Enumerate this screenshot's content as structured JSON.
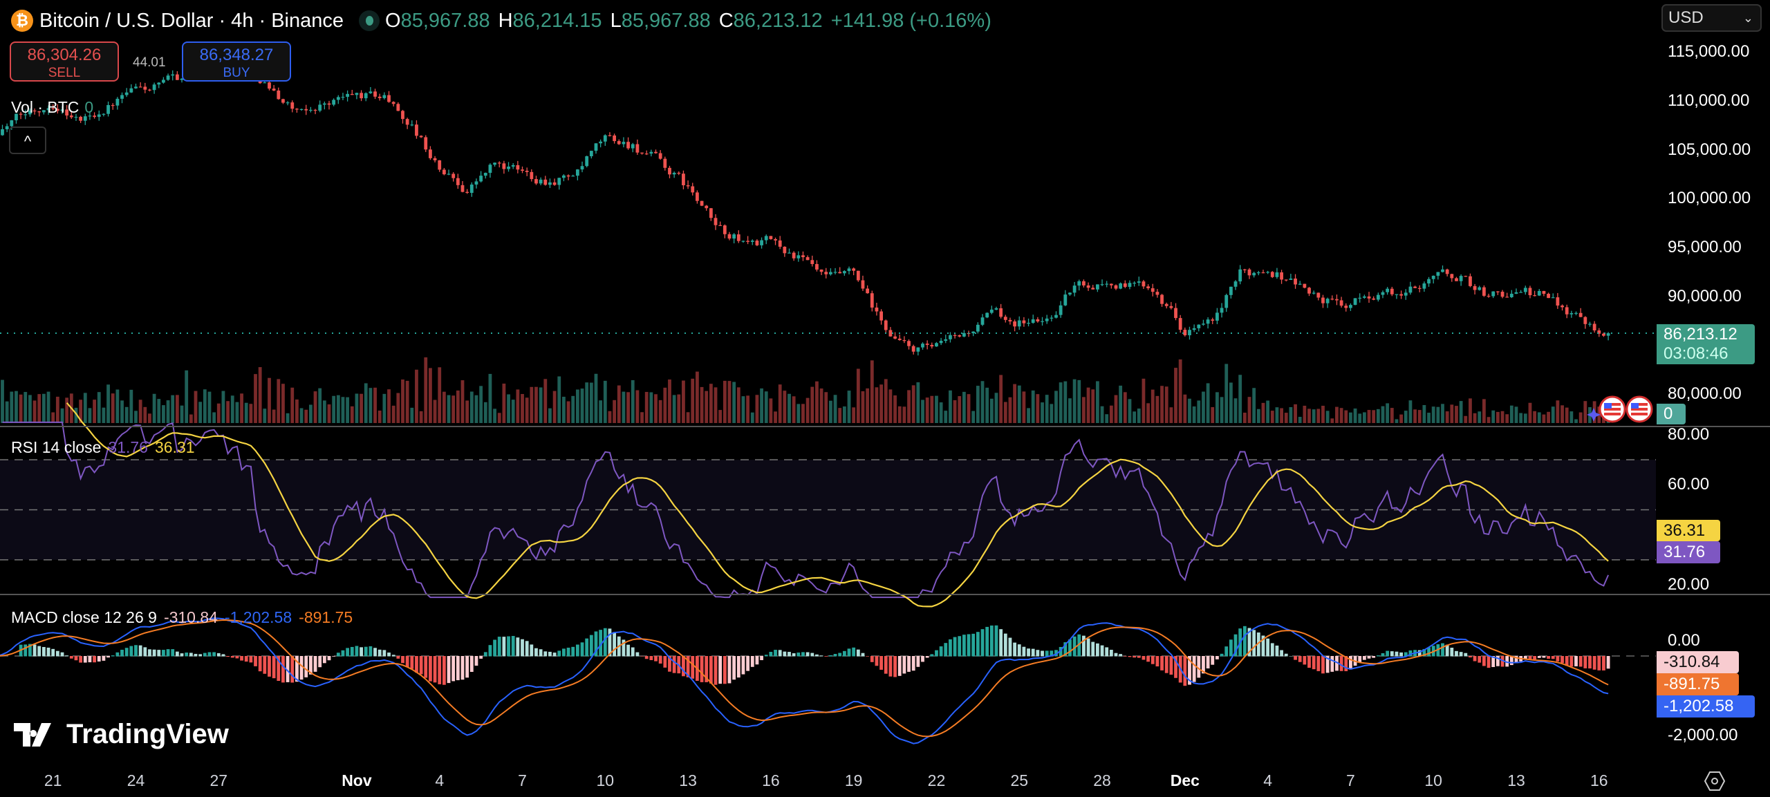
{
  "header": {
    "symbol_title": "Bitcoin / U.S. Dollar · 4h · Binance",
    "ohlc": {
      "o_label": "O",
      "o": "85,967.88",
      "h_label": "H",
      "h": "86,214.15",
      "l_label": "L",
      "l": "85,967.88",
      "c_label": "C",
      "c": "86,213.12",
      "change": "+141.98 (+0.16%)"
    }
  },
  "trade": {
    "sell_price": "86,304.26",
    "sell_label": "SELL",
    "spread": "44.01",
    "buy_price": "86,348.27",
    "buy_label": "BUY"
  },
  "volume_legend": {
    "label": "Vol · BTC",
    "value": "0"
  },
  "collapse_label": "^",
  "currency": {
    "selected": "USD"
  },
  "price_axis": {
    "ticks": [
      "115,000.00",
      "110,000.00",
      "105,000.00",
      "100,000.00",
      "95,000.00",
      "90,000.00",
      "80,000.00"
    ],
    "last_price": "86,213.12",
    "countdown": "03:08:46",
    "volume_tag": "0"
  },
  "rsi": {
    "label": "RSI 14 close",
    "rsi": "31.76",
    "ma": "36.31",
    "ticks": [
      "80.00",
      "60.00",
      "20.00"
    ]
  },
  "macd": {
    "label": "MACD close 12 26 9",
    "hist": "-310.84",
    "macd": "-1,202.58",
    "signal": "-891.75",
    "ticks": [
      "0.00",
      "-2,000.00"
    ]
  },
  "time_axis": [
    "21",
    "24",
    "27",
    "Nov",
    "4",
    "7",
    "10",
    "13",
    "16",
    "19",
    "22",
    "25",
    "28",
    "Dec",
    "4",
    "7",
    "10",
    "13",
    "16"
  ],
  "logo": "TradingView",
  "colors": {
    "up": "#26a69a",
    "down": "#ef5350",
    "rsi": "#7e57c2",
    "rsi_ma": "#f5d442",
    "macd": "#2962ff",
    "signal": "#f57c24"
  },
  "chart_data": {
    "type": "candlestick",
    "title": "Bitcoin / U.S. Dollar · 4h · Binance",
    "interval": "4h",
    "ylim": [
      77000,
      118000
    ],
    "price_waypoints_day_close": [
      [
        19,
        107000
      ],
      [
        20,
        108500
      ],
      [
        21,
        110000
      ],
      [
        22,
        108000
      ],
      [
        23,
        109500
      ],
      [
        24,
        111000
      ],
      [
        25,
        111500
      ],
      [
        26,
        113000
      ],
      [
        27,
        114500
      ],
      [
        28,
        114000
      ],
      [
        29,
        111000
      ],
      [
        30,
        108500
      ],
      [
        31,
        110000
      ],
      [
        32,
        110500
      ],
      [
        33,
        110500
      ],
      [
        34,
        107500
      ],
      [
        35,
        103000
      ],
      [
        36,
        101000
      ],
      [
        37,
        103500
      ],
      [
        38,
        102500
      ],
      [
        39,
        102000
      ],
      [
        40,
        102500
      ],
      [
        41,
        106000
      ],
      [
        42,
        105500
      ],
      [
        43,
        103500
      ],
      [
        44,
        101000
      ],
      [
        45,
        97000
      ],
      [
        46,
        95500
      ],
      [
        47,
        95500
      ],
      [
        48,
        94000
      ],
      [
        49,
        91500
      ],
      [
        50,
        92000
      ],
      [
        51,
        87000
      ],
      [
        52,
        84500
      ],
      [
        53,
        84500
      ],
      [
        54,
        86000
      ],
      [
        55,
        88000
      ],
      [
        56,
        87500
      ],
      [
        57,
        87500
      ],
      [
        58,
        91000
      ],
      [
        59,
        91500
      ],
      [
        60,
        91000
      ],
      [
        61,
        91000
      ],
      [
        62,
        86500
      ],
      [
        63,
        87000
      ],
      [
        64,
        92000
      ],
      [
        65,
        93000
      ],
      [
        66,
        91500
      ],
      [
        67,
        89500
      ],
      [
        68,
        89000
      ],
      [
        69,
        90500
      ],
      [
        70,
        90000
      ],
      [
        71,
        92500
      ],
      [
        72,
        92000
      ],
      [
        73,
        90000
      ],
      [
        74,
        90500
      ],
      [
        75,
        90000
      ],
      [
        76,
        88500
      ],
      [
        77.4,
        86213
      ]
    ],
    "last_close": 86213.12,
    "rsi_levels": [
      70,
      50,
      30
    ],
    "rsi_ylim": [
      20,
      80
    ],
    "macd_params": [
      12,
      26,
      9
    ]
  }
}
